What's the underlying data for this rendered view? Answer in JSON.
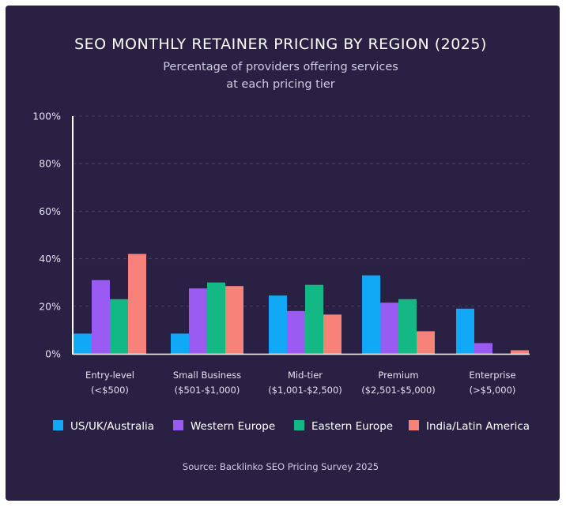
{
  "chart_data": {
    "type": "bar",
    "title": "SEO MONTHLY RETAINER PRICING BY REGION (2025)",
    "subtitle_lines": [
      "Percentage of providers offering services",
      "at each pricing tier"
    ],
    "categories": [
      {
        "line1": "Entry-level",
        "line2": "(<$500)"
      },
      {
        "line1": "Small Business",
        "line2": "($501-$1,000)"
      },
      {
        "line1": "Mid-tier",
        "line2": "($1,001-$2,500)"
      },
      {
        "line1": "Premium",
        "line2": "($2,501-$5,000)"
      },
      {
        "line1": "Enterprise",
        "line2": "(>$5,000)"
      }
    ],
    "series": [
      {
        "name": "US/UK/Australia",
        "color": "#11a9f5",
        "values": [
          8.5,
          8.5,
          24.5,
          33,
          19
        ]
      },
      {
        "name": "Western Europe",
        "color": "#9a5bf2",
        "values": [
          31,
          27.5,
          18,
          21.5,
          4.5
        ]
      },
      {
        "name": "Eastern Europe",
        "color": "#14b885",
        "values": [
          23,
          30,
          29,
          23,
          0
        ]
      },
      {
        "name": "India/Latin America",
        "color": "#f7827a",
        "values": [
          42,
          28.5,
          16.5,
          9.5,
          1.5
        ]
      }
    ],
    "ylim": [
      0,
      100
    ],
    "y_ticks": [
      {
        "value": 0,
        "label": "0%"
      },
      {
        "value": 20,
        "label": "20%"
      },
      {
        "value": 40,
        "label": "40%"
      },
      {
        "value": 60,
        "label": "60%"
      },
      {
        "value": 80,
        "label": "80%"
      },
      {
        "value": 100,
        "label": "100%"
      }
    ],
    "grid": true,
    "legend_position": "bottom",
    "source": "Source: Backlinko SEO Pricing Survey 2025"
  }
}
